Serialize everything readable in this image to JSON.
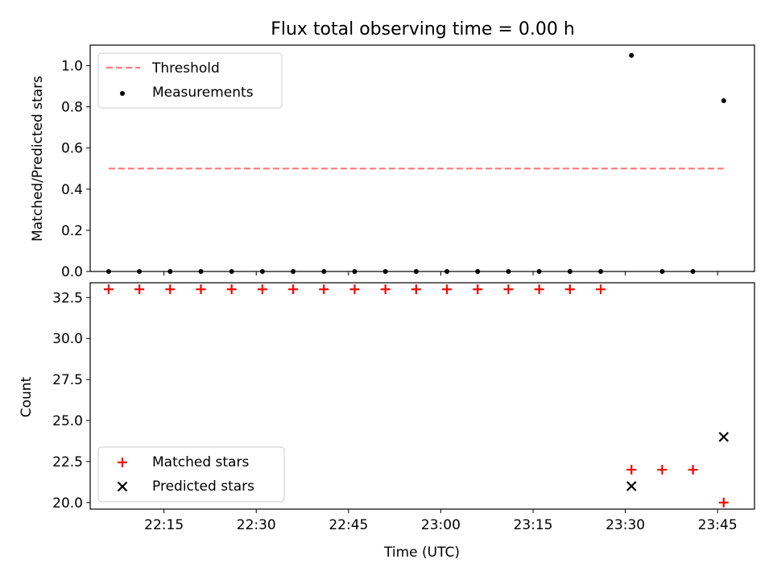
{
  "chart_data": [
    {
      "type": "scatter",
      "title": "Flux total observing time = 0.00 h",
      "xlabel": "",
      "ylabel": "Matched/Predicted stars",
      "ylim": [
        0.0,
        1.1
      ],
      "yticks": [
        "0.0",
        "0.2",
        "0.4",
        "0.6",
        "0.8",
        "1.0"
      ],
      "legend_position": "upper-left",
      "threshold": {
        "name": "Threshold",
        "value": 0.5,
        "color": "#ff7f7f",
        "x_range": [
          "22:06",
          "23:46"
        ]
      },
      "series": [
        {
          "name": "Measurements",
          "marker": "dot",
          "color": "#000000",
          "x": [
            "22:06",
            "22:11",
            "22:16",
            "22:21",
            "22:26",
            "22:31",
            "22:36",
            "22:41",
            "22:46",
            "22:51",
            "22:56",
            "23:01",
            "23:06",
            "23:11",
            "23:16",
            "23:21",
            "23:26",
            "23:31",
            "23:36",
            "23:41",
            "23:46"
          ],
          "y": [
            0.0,
            0.0,
            0.0,
            0.0,
            0.0,
            0.0,
            0.0,
            0.0,
            0.0,
            0.0,
            0.0,
            0.0,
            0.0,
            0.0,
            0.0,
            0.0,
            0.0,
            1.05,
            0.0,
            0.0,
            0.83
          ]
        }
      ]
    },
    {
      "type": "scatter",
      "title": "",
      "xlabel": "Time (UTC)",
      "ylabel": "Count",
      "ylim": [
        19.6,
        33.4
      ],
      "xlim": [
        "22:03",
        "23:51"
      ],
      "xticks": [
        "22:15",
        "22:30",
        "22:45",
        "23:00",
        "23:15",
        "23:30",
        "23:45"
      ],
      "yticks": [
        "20.0",
        "22.5",
        "25.0",
        "27.5",
        "30.0",
        "32.5"
      ],
      "legend_position": "lower-left",
      "series": [
        {
          "name": "Matched stars",
          "marker": "plus",
          "color": "#ff0000",
          "x": [
            "22:06",
            "22:11",
            "22:16",
            "22:21",
            "22:26",
            "22:31",
            "22:36",
            "22:41",
            "22:46",
            "22:51",
            "22:56",
            "23:01",
            "23:06",
            "23:11",
            "23:16",
            "23:21",
            "23:26",
            "23:31",
            "23:36",
            "23:41",
            "23:46"
          ],
          "y": [
            33,
            33,
            33,
            33,
            33,
            33,
            33,
            33,
            33,
            33,
            33,
            33,
            33,
            33,
            33,
            33,
            33,
            22,
            22,
            22,
            20
          ]
        },
        {
          "name": "Predicted stars",
          "marker": "x",
          "color": "#000000",
          "x": [
            "23:31",
            "23:46"
          ],
          "y": [
            21,
            24
          ]
        }
      ]
    }
  ]
}
